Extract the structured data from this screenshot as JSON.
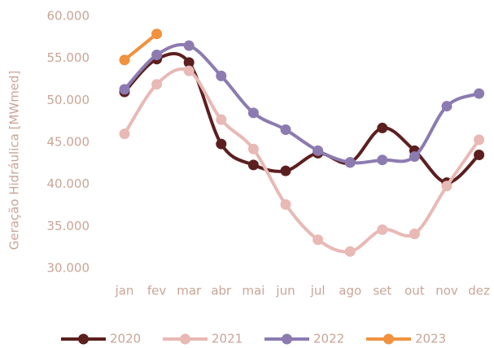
{
  "chart_data": {
    "type": "line",
    "y_label": "Geração Hidráulica [MWmed]",
    "categories": [
      "jan",
      "fev",
      "mar",
      "abr",
      "mai",
      "jun",
      "jul",
      "ago",
      "set",
      "out",
      "nov",
      "dez"
    ],
    "series": [
      {
        "name": "2020",
        "color": "#5c1f1f",
        "values": [
          51000,
          54900,
          54500,
          44800,
          42300,
          41600,
          43700,
          42600,
          46700,
          44000,
          40200,
          43500
        ]
      },
      {
        "name": "2021",
        "color": "#e8b9b5",
        "values": [
          46000,
          51900,
          53500,
          47700,
          44200,
          37600,
          33400,
          32000,
          34600,
          34100,
          39800,
          45300
        ]
      },
      {
        "name": "2022",
        "color": "#8c7bb0",
        "values": [
          51300,
          55400,
          56500,
          52900,
          48500,
          46500,
          44000,
          42600,
          42900,
          43300,
          49300,
          50800
        ]
      },
      {
        "name": "2023",
        "color": "#f0923e",
        "values": [
          54800,
          57900,
          null,
          null,
          null,
          null,
          null,
          null,
          null,
          null,
          null,
          null
        ]
      }
    ],
    "ylim": [
      30000,
      60000
    ],
    "yticks": [
      {
        "value": 30000,
        "label": "30.000"
      },
      {
        "value": 35000,
        "label": "35.000"
      },
      {
        "value": 40000,
        "label": "40.000"
      },
      {
        "value": 45000,
        "label": "45.000"
      },
      {
        "value": 50000,
        "label": "50.000"
      },
      {
        "value": 55000,
        "label": "55.000"
      },
      {
        "value": 60000,
        "label": "60.000"
      }
    ],
    "grid": false,
    "legend": "bottom"
  }
}
